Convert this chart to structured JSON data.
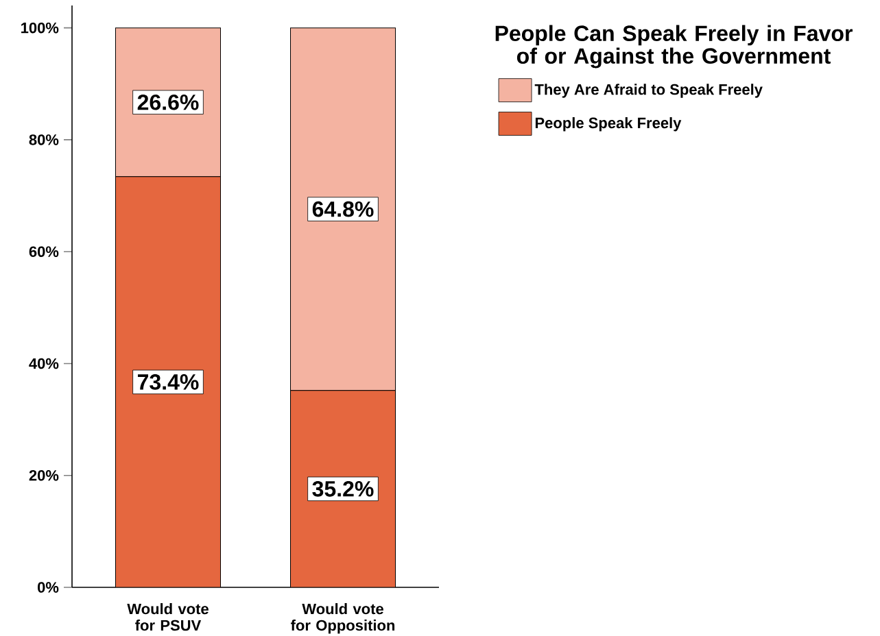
{
  "chart_data": {
    "type": "bar",
    "stacked": true,
    "legend": "top right",
    "legend_title": "People Can Speak Freely in Favor of or Against the Government",
    "categories": [
      "Would vote for PSUV",
      "Would vote for Opposition"
    ],
    "series": [
      {
        "name": "People Speak Freely",
        "color": "#e5673f",
        "values": [
          73.4,
          35.2
        ],
        "value_labels": [
          "73.4%",
          "35.2%"
        ]
      },
      {
        "name": "They Are Afraid to Speak Freely",
        "color": "#f4b3a1",
        "values": [
          26.6,
          64.8
        ],
        "value_labels": [
          "26.6%",
          "64.8%"
        ]
      }
    ],
    "ylim": [
      0,
      104
    ],
    "yticks": [
      {
        "value": 0,
        "label": "0%"
      },
      {
        "value": 20,
        "label": "20%"
      },
      {
        "value": 40,
        "label": "40%"
      },
      {
        "value": 60,
        "label": "60%"
      },
      {
        "value": 80,
        "label": "80%"
      },
      {
        "value": 100,
        "label": "100%"
      }
    ]
  }
}
